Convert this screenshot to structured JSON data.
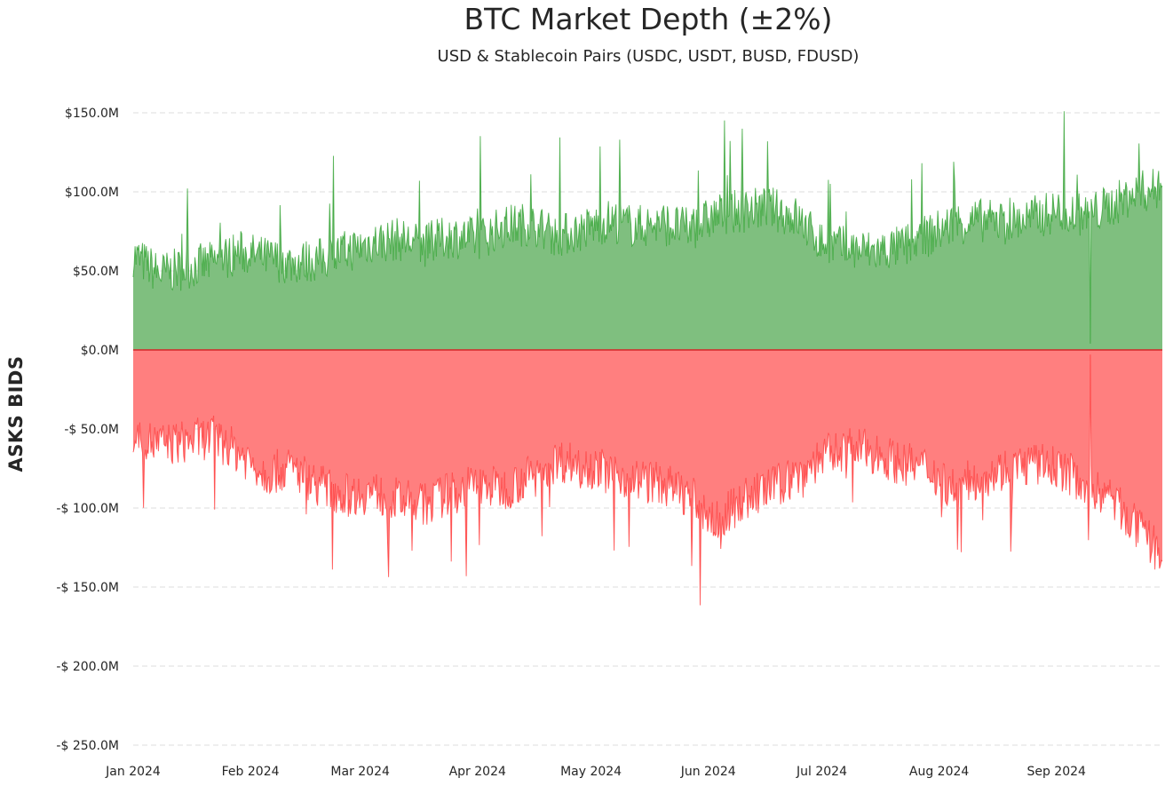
{
  "chart_data": {
    "type": "area",
    "title": "BTC Market Depth (±2%)",
    "subtitle": "USD & Stablecoin Pairs (USDC, USDT, BUSD, FDUSD)",
    "ylabel": "ASKS BIDS",
    "xlabel": "",
    "ylim": [
      -250,
      150
    ],
    "y_unit": "million USD",
    "grid": "horizontal dashed",
    "x_range": [
      "2024-01-01",
      "2024-09-29"
    ],
    "y_ticks": [
      150,
      100,
      50,
      0,
      -50,
      -100,
      -150,
      -200,
      -250
    ],
    "y_tick_labels": [
      "$150.0M",
      "$100.0M",
      "$50.0M",
      "$0.0M",
      "-$ 50.0M",
      "-$ 100.0M",
      "-$ 150.0M",
      "-$ 200.0M",
      "-$ 250.0M"
    ],
    "x_ticks": [
      "2024-01-01",
      "2024-02-01",
      "2024-03-01",
      "2024-04-01",
      "2024-05-01",
      "2024-06-01",
      "2024-07-01",
      "2024-08-01",
      "2024-09-01"
    ],
    "x_tick_labels": [
      "Jan 2024",
      "Feb 2024",
      "Mar 2024",
      "Apr 2024",
      "May 2024",
      "Jun 2024",
      "Jul 2024",
      "Aug 2024",
      "Sep 2024"
    ],
    "colors": {
      "bids": "#7fbf7f",
      "bids_line": "#2ca02c",
      "asks": "#ff7f7f",
      "asks_line": "#ff3333",
      "zero_line": "#d62728"
    },
    "series": [
      {
        "name": "Bids",
        "x": [
          "2024-01-01",
          "2024-01-08",
          "2024-01-15",
          "2024-01-22",
          "2024-01-29",
          "2024-02-05",
          "2024-02-12",
          "2024-02-19",
          "2024-02-26",
          "2024-03-04",
          "2024-03-11",
          "2024-03-18",
          "2024-03-25",
          "2024-04-01",
          "2024-04-08",
          "2024-04-15",
          "2024-04-22",
          "2024-04-29",
          "2024-05-06",
          "2024-05-13",
          "2024-05-20",
          "2024-05-27",
          "2024-06-03",
          "2024-06-10",
          "2024-06-17",
          "2024-06-24",
          "2024-07-01",
          "2024-07-08",
          "2024-07-15",
          "2024-07-22",
          "2024-07-29",
          "2024-08-05",
          "2024-08-12",
          "2024-08-19",
          "2024-08-26",
          "2024-09-02",
          "2024-09-09",
          "2024-09-16",
          "2024-09-23",
          "2024-09-29"
        ],
        "values": [
          60,
          48,
          52,
          55,
          62,
          58,
          55,
          57,
          62,
          68,
          70,
          66,
          72,
          70,
          78,
          80,
          72,
          76,
          82,
          78,
          80,
          76,
          85,
          88,
          90,
          84,
          68,
          64,
          62,
          65,
          72,
          80,
          82,
          80,
          84,
          88,
          85,
          92,
          100,
          102
        ]
      },
      {
        "name": "Asks",
        "x": [
          "2024-01-01",
          "2024-01-08",
          "2024-01-15",
          "2024-01-22",
          "2024-01-29",
          "2024-02-05",
          "2024-02-12",
          "2024-02-19",
          "2024-02-26",
          "2024-03-04",
          "2024-03-11",
          "2024-03-18",
          "2024-03-25",
          "2024-04-01",
          "2024-04-08",
          "2024-04-15",
          "2024-04-22",
          "2024-04-29",
          "2024-05-06",
          "2024-05-13",
          "2024-05-20",
          "2024-05-27",
          "2024-06-03",
          "2024-06-10",
          "2024-06-17",
          "2024-06-24",
          "2024-07-01",
          "2024-07-08",
          "2024-07-15",
          "2024-07-22",
          "2024-07-29",
          "2024-08-05",
          "2024-08-12",
          "2024-08-19",
          "2024-08-26",
          "2024-09-02",
          "2024-09-09",
          "2024-09-16",
          "2024-09-23",
          "2024-09-29"
        ],
        "values": [
          -55,
          -60,
          -58,
          -55,
          -65,
          -78,
          -75,
          -85,
          -92,
          -90,
          -95,
          -98,
          -90,
          -85,
          -88,
          -80,
          -70,
          -72,
          -78,
          -82,
          -85,
          -92,
          -110,
          -95,
          -88,
          -80,
          -68,
          -62,
          -65,
          -72,
          -75,
          -88,
          -80,
          -75,
          -72,
          -75,
          -85,
          -95,
          -115,
          -130
        ]
      }
    ],
    "annotations": [
      {
        "x": "2024-09-10",
        "bids": 4,
        "asks": -3,
        "note": "data gap spike"
      }
    ]
  }
}
